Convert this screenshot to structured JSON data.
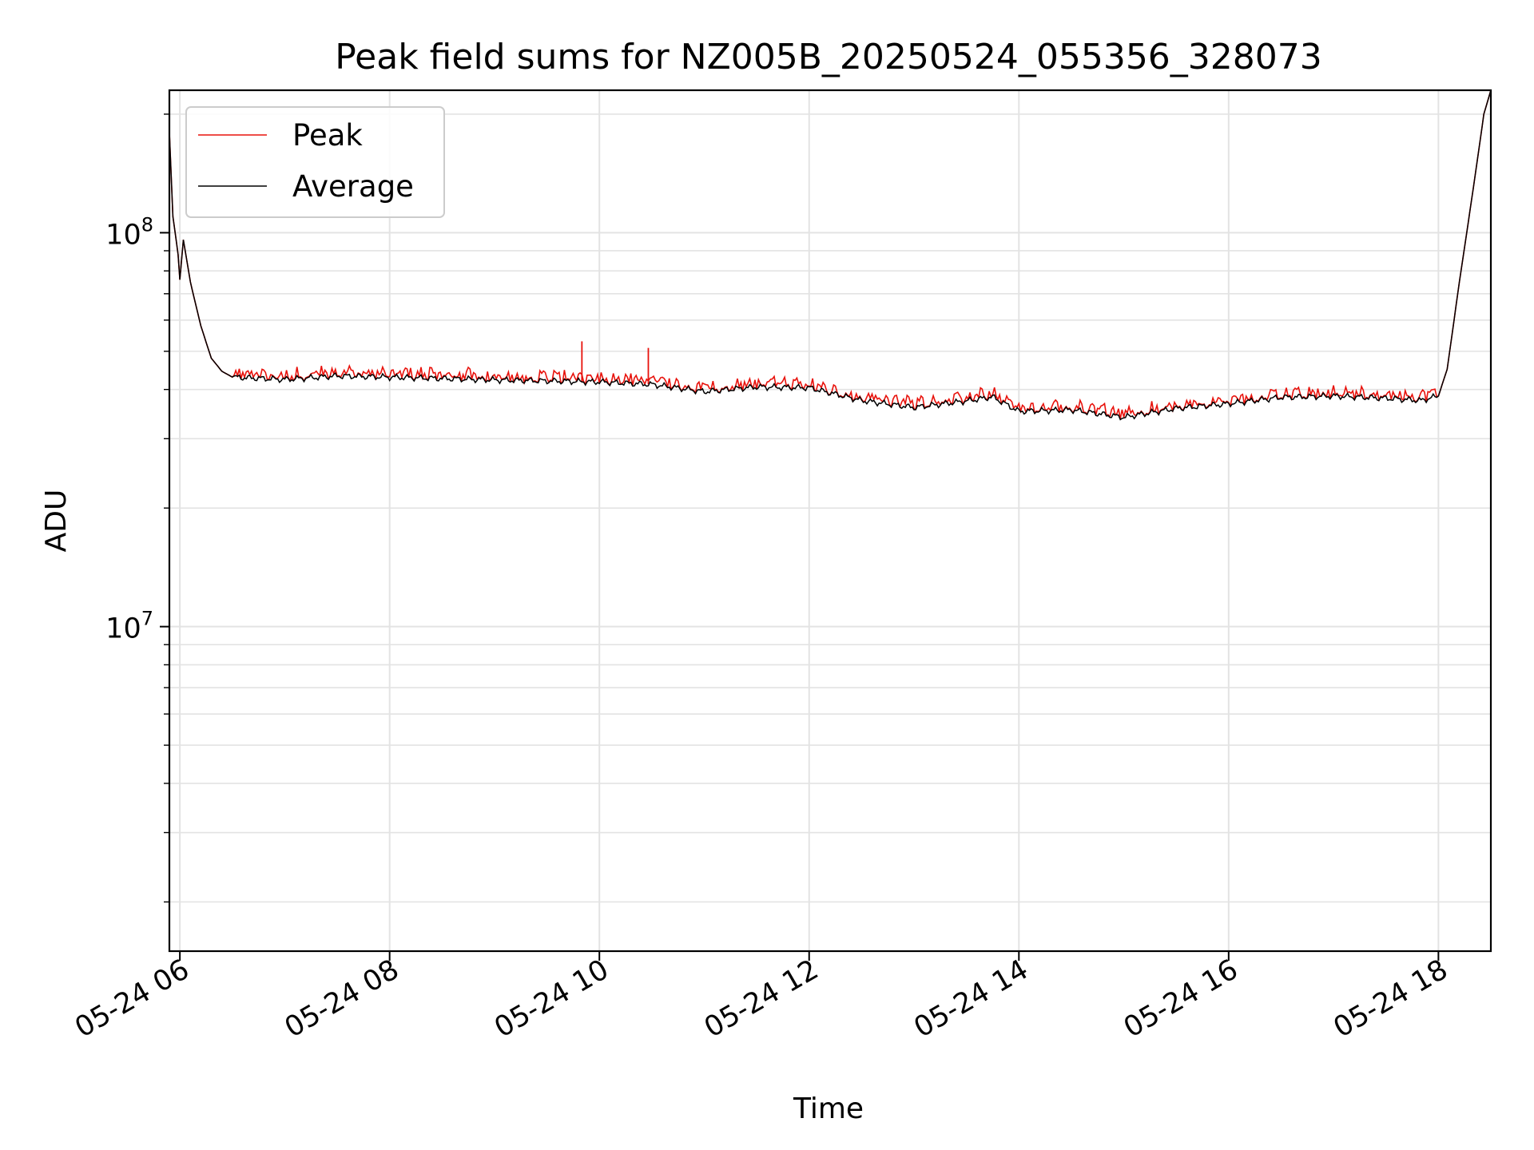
{
  "chart_data": {
    "type": "line",
    "title": "Peak field sums for NZ005B_20250524_055356_328073",
    "xlabel": "Time",
    "ylabel": "ADU",
    "yscale": "log",
    "xlim": [
      "05-24 05:54",
      "05-24 18:30"
    ],
    "ylim": [
      1500000,
      230000000
    ],
    "grid": true,
    "legend_position": "top-left",
    "x_ticks": [
      "05-24 06",
      "05-24 08",
      "05-24 10",
      "05-24 12",
      "05-24 14",
      "05-24 16",
      "05-24 18"
    ],
    "y_ticks": [
      {
        "value": 10000000,
        "base": "10",
        "exp": "7"
      },
      {
        "value": 100000000,
        "base": "10",
        "exp": "8"
      }
    ],
    "series": [
      {
        "name": "Average",
        "color": "#000000",
        "points": [
          [
            "05-24 05:54",
            180000000
          ],
          [
            "05-24 05:56",
            110000000
          ],
          [
            "05-24 05:59",
            88000000
          ],
          [
            "05-24 06:00",
            76000000
          ],
          [
            "05-24 06:02",
            96000000
          ],
          [
            "05-24 06:06",
            75000000
          ],
          [
            "05-24 06:12",
            58000000
          ],
          [
            "05-24 06:18",
            48000000
          ],
          [
            "05-24 06:24",
            44500000
          ],
          [
            "05-24 06:30",
            43000000
          ],
          [
            "05-24 07:00",
            42400000
          ],
          [
            "05-24 07:30",
            43300000
          ],
          [
            "05-24 08:00",
            43000000
          ],
          [
            "05-24 09:00",
            42300000
          ],
          [
            "05-24 10:00",
            41800000
          ],
          [
            "05-24 10:30",
            41200000
          ],
          [
            "05-24 11:00",
            39500000
          ],
          [
            "05-24 11:30",
            40600000
          ],
          [
            "05-24 12:00",
            40400000
          ],
          [
            "05-24 12:30",
            37500000
          ],
          [
            "05-24 13:00",
            36000000
          ],
          [
            "05-24 13:30",
            37400000
          ],
          [
            "05-24 13:45",
            38300000
          ],
          [
            "05-24 14:00",
            35200000
          ],
          [
            "05-24 14:30",
            35500000
          ],
          [
            "05-24 15:00",
            34000000
          ],
          [
            "05-24 15:30",
            35800000
          ],
          [
            "05-24 16:00",
            36800000
          ],
          [
            "05-24 16:30",
            38200000
          ],
          [
            "05-24 17:00",
            38500000
          ],
          [
            "05-24 17:30",
            38000000
          ],
          [
            "05-24 17:50",
            37500000
          ],
          [
            "05-24 18:00",
            38500000
          ],
          [
            "05-24 18:05",
            45000000
          ],
          [
            "05-24 18:12",
            75000000
          ],
          [
            "05-24 18:20",
            130000000
          ],
          [
            "05-24 18:26",
            200000000
          ],
          [
            "05-24 18:30",
            230000000
          ]
        ]
      },
      {
        "name": "Peak",
        "color": "#e8120c",
        "spikes": [
          [
            "05-24 09:50",
            53000000
          ],
          [
            "05-24 10:28",
            51000000
          ]
        ]
      }
    ]
  }
}
